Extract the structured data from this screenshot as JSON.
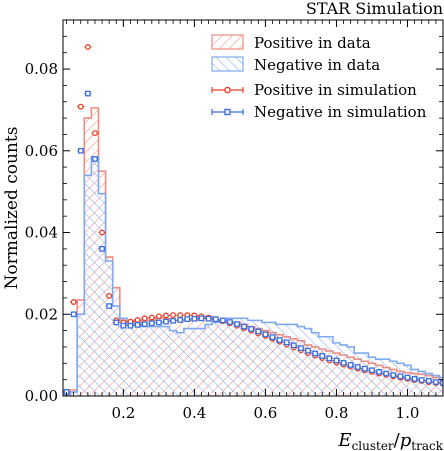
{
  "chart_data": {
    "type": "histogram",
    "title": "STAR Simulation",
    "xlabel_main": "E",
    "xlabel_sub1": "cluster",
    "xlabel_mid": "/",
    "xlabel_p": "p",
    "xlabel_sub2": "track",
    "ylabel": "Normalized counts",
    "xlim": [
      0.03,
      1.1
    ],
    "ylim": [
      0,
      0.092
    ],
    "x_ticks": [
      0.2,
      0.4,
      0.6,
      0.8,
      1.0
    ],
    "x_tick_labels": [
      "0.2",
      "0.4",
      "0.6",
      "0.8",
      "1.0"
    ],
    "y_ticks": [
      0.0,
      0.02,
      0.04,
      0.06,
      0.08
    ],
    "y_tick_labels": [
      "0.00",
      "0.02",
      "0.04",
      "0.06",
      "0.08"
    ],
    "bin_edges": [
      0.03,
      0.05,
      0.07,
      0.09,
      0.11,
      0.13,
      0.15,
      0.17,
      0.19,
      0.21,
      0.23,
      0.25,
      0.27,
      0.29,
      0.31,
      0.33,
      0.35,
      0.37,
      0.39,
      0.41,
      0.43,
      0.45,
      0.47,
      0.49,
      0.51,
      0.53,
      0.55,
      0.57,
      0.59,
      0.61,
      0.63,
      0.65,
      0.67,
      0.69,
      0.71,
      0.73,
      0.75,
      0.77,
      0.79,
      0.81,
      0.83,
      0.85,
      0.87,
      0.89,
      0.91,
      0.93,
      0.95,
      0.97,
      0.99,
      1.01,
      1.03,
      1.05,
      1.07,
      1.09,
      1.11
    ],
    "series": [
      {
        "name": "Positive in data",
        "kind": "hatched-histogram",
        "color": "#f08c80",
        "values": [
          0,
          0.0015,
          0.0235,
          0.068,
          0.0705,
          0.055,
          0.034,
          0.0265,
          0.0185,
          0.0185,
          0.018,
          0.0185,
          0.0185,
          0.019,
          0.019,
          0.0185,
          0.0185,
          0.0185,
          0.0185,
          0.0195,
          0.0195,
          0.0185,
          0.0185,
          0.018,
          0.018,
          0.0175,
          0.017,
          0.0165,
          0.016,
          0.0155,
          0.015,
          0.0145,
          0.014,
          0.0135,
          0.0125,
          0.012,
          0.0115,
          0.011,
          0.0105,
          0.01,
          0.0095,
          0.009,
          0.0085,
          0.008,
          0.0075,
          0.007,
          0.0065,
          0.006,
          0.0057,
          0.0055,
          0.0053,
          0.005,
          0.0045,
          0.004
        ]
      },
      {
        "name": "Negative in data",
        "kind": "hatched-histogram",
        "color": "#7faaf0",
        "values": [
          0,
          0.001,
          0.02,
          0.054,
          0.0585,
          0.0495,
          0.033,
          0.022,
          0.019,
          0.0175,
          0.0175,
          0.017,
          0.017,
          0.017,
          0.017,
          0.016,
          0.0155,
          0.0165,
          0.0165,
          0.0165,
          0.0175,
          0.018,
          0.0185,
          0.019,
          0.019,
          0.019,
          0.0185,
          0.0185,
          0.018,
          0.018,
          0.0175,
          0.0175,
          0.0175,
          0.017,
          0.0165,
          0.0155,
          0.0145,
          0.0145,
          0.013,
          0.0125,
          0.012,
          0.0105,
          0.0105,
          0.0095,
          0.009,
          0.009,
          0.0085,
          0.008,
          0.0075,
          0.0065,
          0.006,
          0.0055,
          0.005,
          0.0045
        ]
      },
      {
        "name": "Positive in simulation",
        "kind": "points-circle",
        "color": "#e8402a",
        "values": [
          0.001,
          0.023,
          0.0708,
          0.0854,
          0.0643,
          0.04,
          0.0245,
          0.0185,
          0.018,
          0.0182,
          0.0186,
          0.019,
          0.0192,
          0.0195,
          0.0197,
          0.0198,
          0.0198,
          0.0198,
          0.0197,
          0.0195,
          0.0192,
          0.0188,
          0.0183,
          0.0178,
          0.0172,
          0.0166,
          0.016,
          0.0153,
          0.0147,
          0.014,
          0.0133,
          0.0126,
          0.0119,
          0.0112,
          0.0105,
          0.0099,
          0.0093,
          0.0087,
          0.0082,
          0.0077,
          0.0072,
          0.0067,
          0.0063,
          0.0059,
          0.0055,
          0.0052,
          0.0048,
          0.0045,
          0.0042,
          0.0039,
          0.0037,
          0.0034,
          0.0032,
          0.003
        ]
      },
      {
        "name": "Negative in simulation",
        "kind": "points-square",
        "color": "#3a6fe0",
        "values": [
          0.001,
          0.02,
          0.06,
          0.074,
          0.058,
          0.036,
          0.022,
          0.018,
          0.0172,
          0.0172,
          0.0174,
          0.0176,
          0.0178,
          0.018,
          0.0182,
          0.0184,
          0.0186,
          0.0188,
          0.0189,
          0.019,
          0.0189,
          0.0188,
          0.0185,
          0.0181,
          0.0176,
          0.017,
          0.0164,
          0.0158,
          0.0151,
          0.0144,
          0.0137,
          0.0131,
          0.0124,
          0.0117,
          0.0111,
          0.0104,
          0.0098,
          0.0092,
          0.0087,
          0.0081,
          0.0076,
          0.0071,
          0.0067,
          0.0063,
          0.0059,
          0.0055,
          0.0051,
          0.0048,
          0.0045,
          0.0042,
          0.0039,
          0.0037,
          0.0034,
          0.0032
        ]
      }
    ],
    "legend_position": "top-right"
  }
}
